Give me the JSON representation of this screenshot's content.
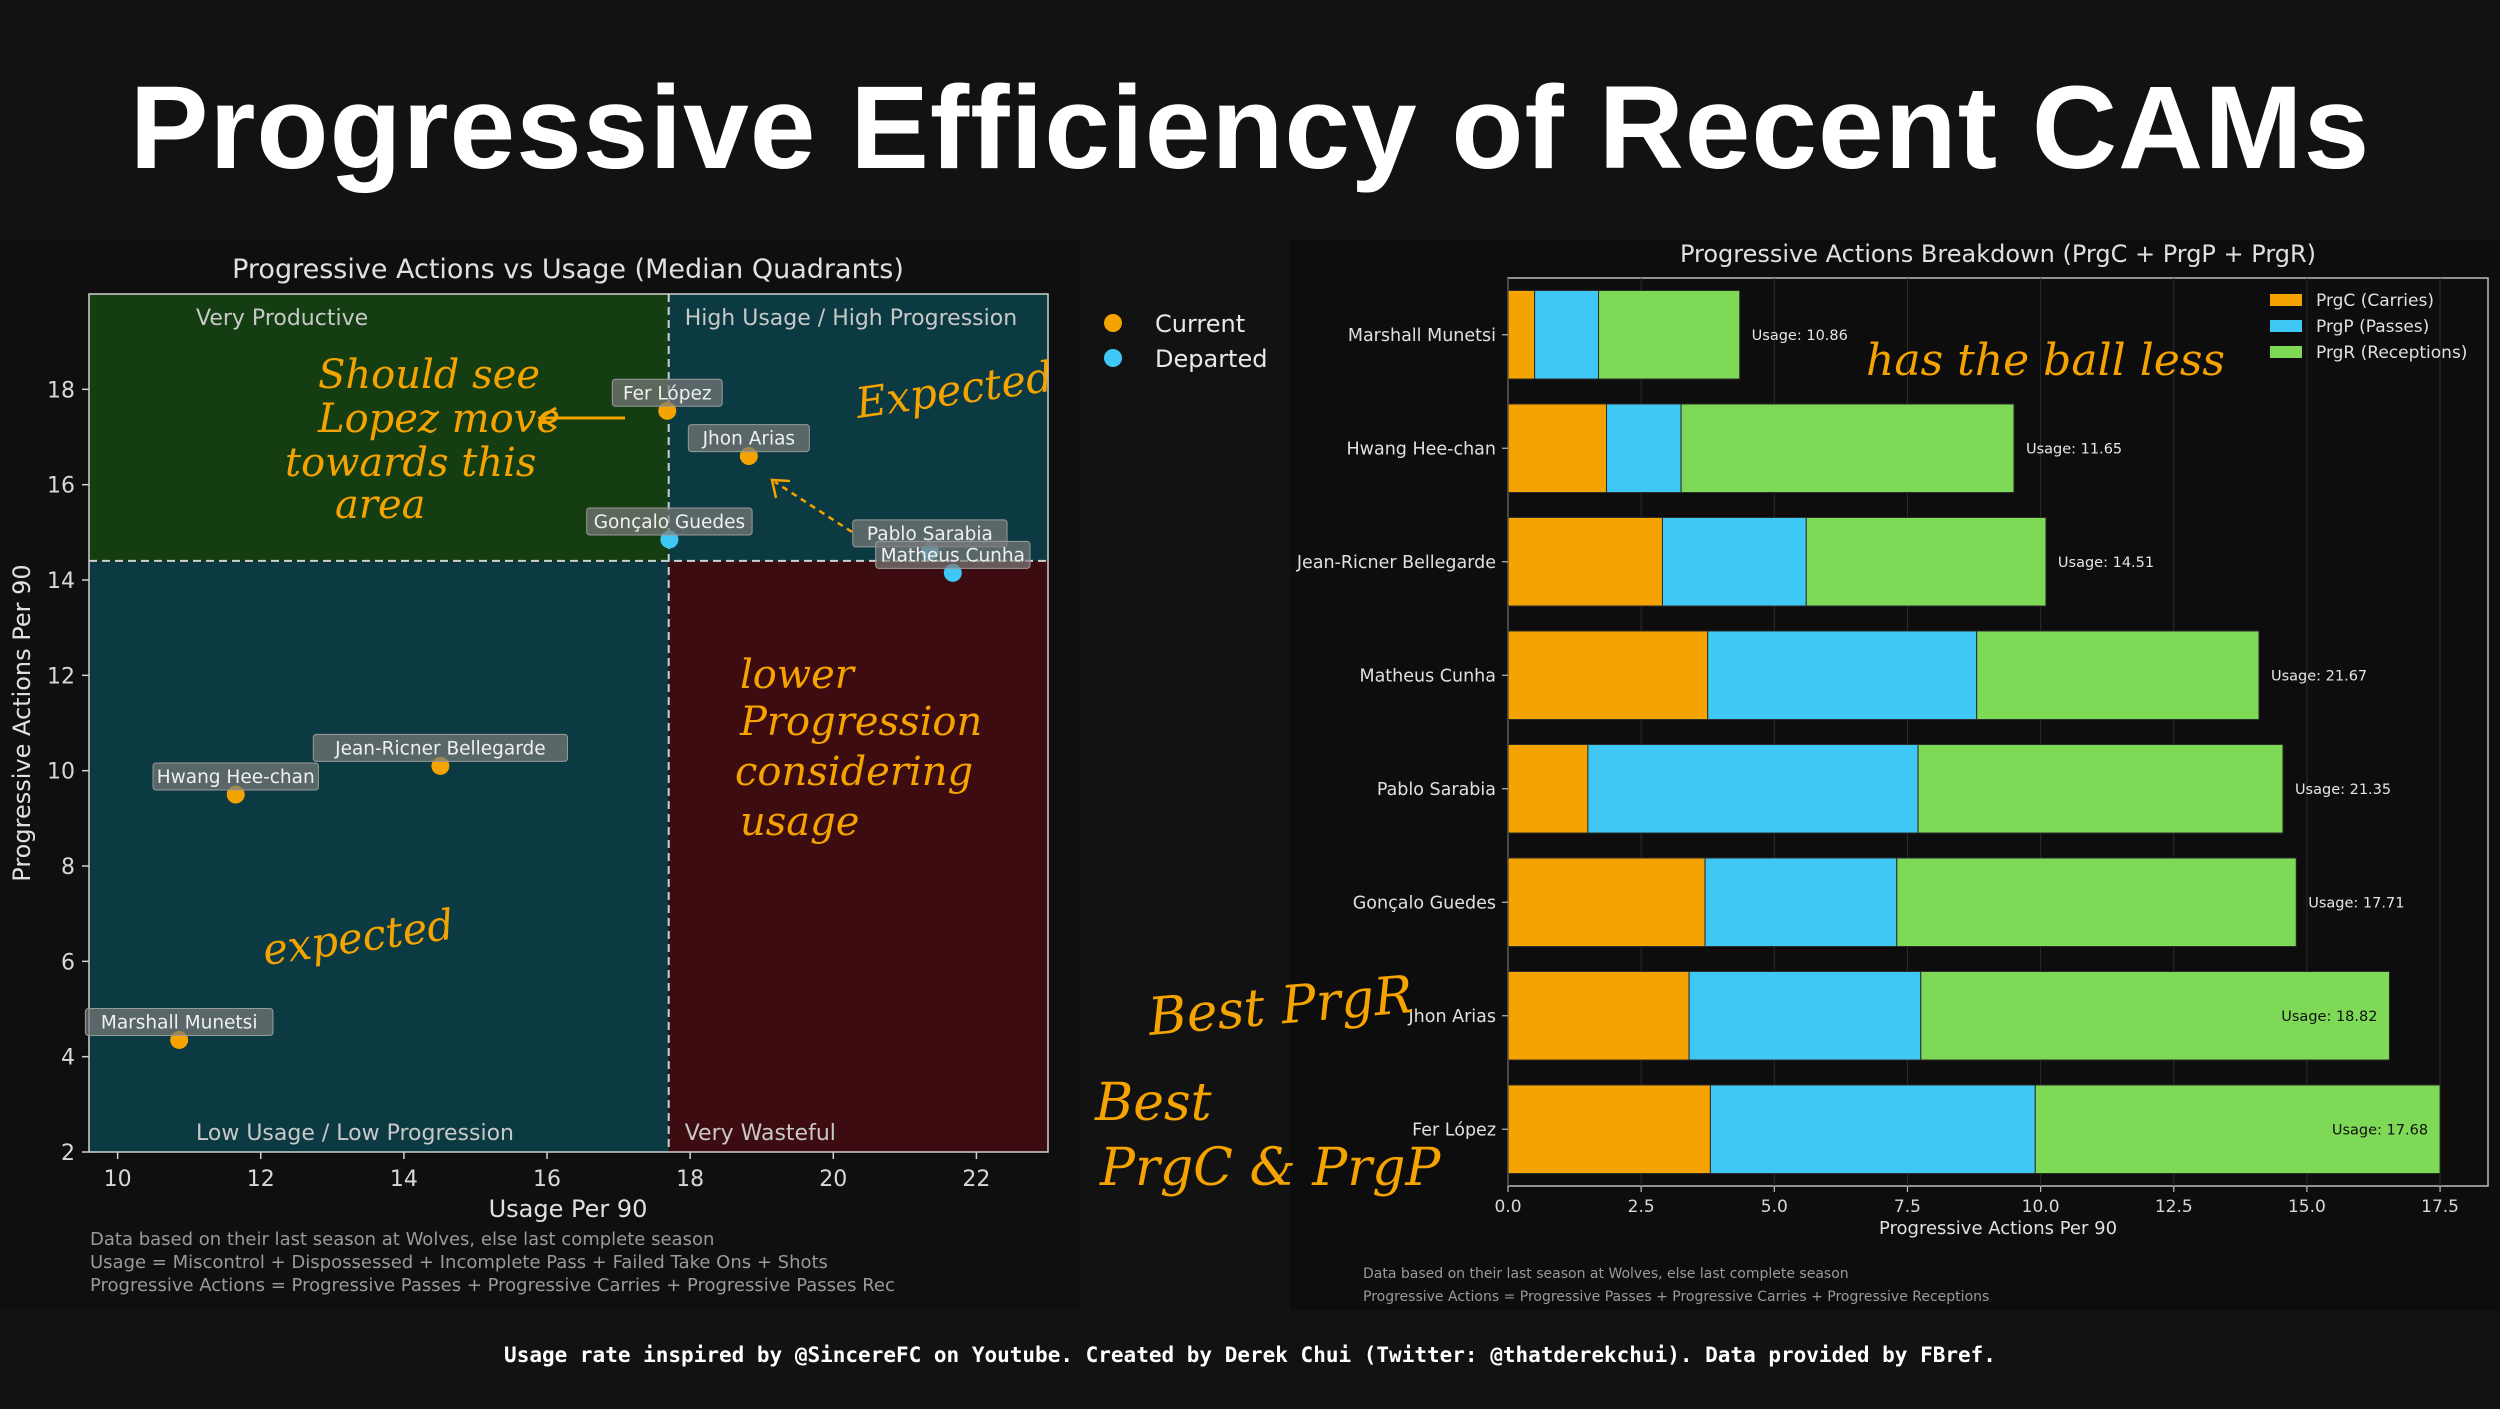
{
  "title": "Progressive Efficiency of Recent CAMs",
  "footer": "Usage rate inspired by @SincereFC on Youtube. Created by Derek Chui (Twitter: @thatderekchui). Data provided by FBref.",
  "colors": {
    "current": "#f5a300",
    "departed": "#3fc8f5",
    "prgc": "#f5a300",
    "prgp": "#3fc8f5",
    "prgr": "#7ed957",
    "annotation": "#f5a300",
    "q_very_productive": "#143d12",
    "q_high_high": "#0b3a42",
    "q_low_low": "#0b3a42",
    "q_very_wasteful": "#3d0c10"
  },
  "chart_data": [
    {
      "type": "scatter",
      "title": "Progressive Actions vs Usage (Median Quadrants)",
      "xlabel": "Usage Per 90",
      "ylabel": "Progressive Actions Per 90",
      "xlim": [
        9.6,
        23.0
      ],
      "ylim": [
        2,
        20
      ],
      "xticks": [
        10,
        12,
        14,
        16,
        18,
        20,
        22
      ],
      "yticks": [
        2,
        4,
        6,
        8,
        10,
        12,
        14,
        16,
        18
      ],
      "median_x": 17.7,
      "median_y": 14.4,
      "quadrant_labels": {
        "top_left": "Very Productive",
        "top_right": "High Usage / High Progression",
        "bottom_left": "Low Usage / Low Progression",
        "bottom_right": "Very Wasteful"
      },
      "legend": {
        "position": "outside-right",
        "entries": [
          "Current",
          "Departed"
        ]
      },
      "points": [
        {
          "name": "Marshall Munetsi",
          "x": 10.86,
          "y": 4.35,
          "status": "current"
        },
        {
          "name": "Hwang Hee-chan",
          "x": 11.65,
          "y": 9.5,
          "status": "current"
        },
        {
          "name": "Jean-Ricner Bellegarde",
          "x": 14.51,
          "y": 10.1,
          "status": "current"
        },
        {
          "name": "Fer López",
          "x": 17.68,
          "y": 17.55,
          "status": "current"
        },
        {
          "name": "Jhon Arias",
          "x": 18.82,
          "y": 16.6,
          "status": "current"
        },
        {
          "name": "Gonçalo Guedes",
          "x": 17.71,
          "y": 14.85,
          "status": "departed"
        },
        {
          "name": "Pablo Sarabia",
          "x": 21.35,
          "y": 14.6,
          "status": "departed"
        },
        {
          "name": "Matheus Cunha",
          "x": 21.67,
          "y": 14.15,
          "status": "departed"
        }
      ],
      "notes": [
        "Data based on their last season at Wolves, else last complete season",
        "Usage = Miscontrol + Dispossessed + Incomplete Pass + Failed Take Ons + Shots",
        "Progressive Actions = Progressive Passes + Progressive Carries + Progressive Passes Rec"
      ]
    },
    {
      "type": "bar",
      "orientation": "horizontal",
      "stacked": true,
      "title": "Progressive Actions Breakdown (PrgC + PrgP + PrgR)",
      "xlabel": "Progressive Actions Per 90",
      "xlim": [
        0,
        18.4
      ],
      "xticks": [
        "0.0",
        "2.5",
        "5.0",
        "7.5",
        "10.0",
        "12.5",
        "15.0",
        "17.5"
      ],
      "legend": {
        "position": "top-right"
      },
      "categories": [
        "Marshall Munetsi",
        "Hwang Hee-chan",
        "Jean-Ricner Bellegarde",
        "Matheus Cunha",
        "Pablo Sarabia",
        "Gonçalo Guedes",
        "Jhon Arias",
        "Fer López"
      ],
      "series": [
        {
          "name": "PrgC (Carries)",
          "values": [
            0.5,
            1.85,
            2.9,
            3.75,
            1.5,
            3.7,
            3.4,
            3.8
          ]
        },
        {
          "name": "PrgP (Passes)",
          "values": [
            1.2,
            1.4,
            2.7,
            5.05,
            6.2,
            3.6,
            4.35,
            6.1
          ]
        },
        {
          "name": "PrgR (Receptions)",
          "values": [
            2.65,
            6.25,
            4.5,
            5.3,
            6.85,
            7.5,
            8.8,
            7.6
          ]
        }
      ],
      "usage_labels": [
        "Usage: 10.86",
        "Usage: 11.65",
        "Usage: 14.51",
        "Usage: 21.67",
        "Usage: 21.35",
        "Usage: 17.71",
        "Usage: 18.82",
        "Usage: 17.68"
      ],
      "notes": [
        "Data based on their last season at Wolves, else last complete season",
        "Progressive Actions = Progressive Passes + Progressive Carries + Progressive Receptions"
      ]
    }
  ],
  "annotations": {
    "should_see": [
      "Should see",
      "Lopez move",
      "towards this",
      "area"
    ],
    "expected_top": "Expected",
    "lower": [
      "lower",
      "Progression",
      "considering",
      "usage"
    ],
    "expected_bottom": "expected",
    "ball_less": "has the ball less",
    "best_prgr": "Best PrgR",
    "best_prgc": [
      "Best",
      "PrgC & PrgP"
    ]
  }
}
